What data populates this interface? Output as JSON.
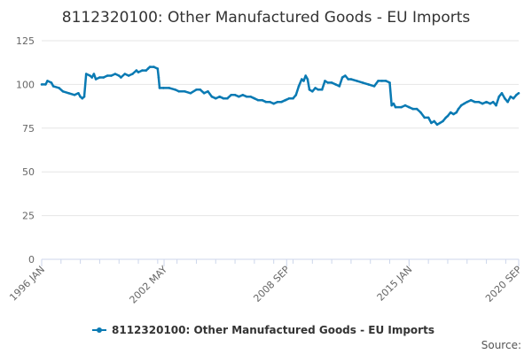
{
  "chart_data": {
    "type": "line",
    "title": "8112320100: Other Manufactured Goods - EU Imports",
    "xlabel": "",
    "ylabel": "",
    "ylim": [
      0,
      125
    ],
    "yticks": [
      0,
      25,
      50,
      75,
      100,
      125
    ],
    "x_range": [
      1996.0,
      2020.67
    ],
    "xticks": [
      {
        "label": "1996 JAN",
        "t": 1996.0
      },
      {
        "label": "2002 MAY",
        "t": 2002.33
      },
      {
        "label": "2008 SEP",
        "t": 2008.67
      },
      {
        "label": "2015 JAN",
        "t": 2015.0
      },
      {
        "label": "2020 SEP",
        "t": 2020.67
      }
    ],
    "grid": "horizontal",
    "legend_position": "bottom-center",
    "series": [
      {
        "name": "8112320100: Other Manufactured Goods - EU Imports",
        "color": "#0a7ab3",
        "points": [
          [
            1996.0,
            100
          ],
          [
            1996.2,
            100
          ],
          [
            1996.3,
            102
          ],
          [
            1996.5,
            101
          ],
          [
            1996.6,
            99
          ],
          [
            1996.9,
            98
          ],
          [
            1997.1,
            96
          ],
          [
            1997.4,
            95
          ],
          [
            1997.7,
            94
          ],
          [
            1997.9,
            95
          ],
          [
            1998.0,
            93
          ],
          [
            1998.1,
            92
          ],
          [
            1998.2,
            93
          ],
          [
            1998.3,
            106
          ],
          [
            1998.5,
            105
          ],
          [
            1998.6,
            104
          ],
          [
            1998.7,
            106
          ],
          [
            1998.8,
            103
          ],
          [
            1999.0,
            104
          ],
          [
            1999.2,
            104
          ],
          [
            1999.4,
            105
          ],
          [
            1999.6,
            105
          ],
          [
            1999.8,
            106
          ],
          [
            2000.0,
            105
          ],
          [
            2000.1,
            104
          ],
          [
            2000.3,
            106
          ],
          [
            2000.5,
            105
          ],
          [
            2000.7,
            106
          ],
          [
            2000.9,
            108
          ],
          [
            2001.0,
            107
          ],
          [
            2001.2,
            108
          ],
          [
            2001.4,
            108
          ],
          [
            2001.5,
            109
          ],
          [
            2001.6,
            110
          ],
          [
            2001.8,
            110
          ],
          [
            2002.0,
            109
          ],
          [
            2002.05,
            104
          ],
          [
            2002.1,
            98
          ],
          [
            2002.3,
            98
          ],
          [
            2002.6,
            98
          ],
          [
            2002.9,
            97
          ],
          [
            2003.1,
            96
          ],
          [
            2003.4,
            96
          ],
          [
            2003.7,
            95
          ],
          [
            2004.0,
            97
          ],
          [
            2004.2,
            97
          ],
          [
            2004.4,
            95
          ],
          [
            2004.6,
            96
          ],
          [
            2004.8,
            93
          ],
          [
            2005.0,
            92
          ],
          [
            2005.2,
            93
          ],
          [
            2005.4,
            92
          ],
          [
            2005.6,
            92
          ],
          [
            2005.8,
            94
          ],
          [
            2006.0,
            94
          ],
          [
            2006.2,
            93
          ],
          [
            2006.4,
            94
          ],
          [
            2006.6,
            93
          ],
          [
            2006.8,
            93
          ],
          [
            2007.0,
            92
          ],
          [
            2007.2,
            91
          ],
          [
            2007.4,
            91
          ],
          [
            2007.6,
            90
          ],
          [
            2007.8,
            90
          ],
          [
            2008.0,
            89
          ],
          [
            2008.2,
            90
          ],
          [
            2008.4,
            90
          ],
          [
            2008.6,
            91
          ],
          [
            2008.8,
            92
          ],
          [
            2009.0,
            92
          ],
          [
            2009.15,
            94
          ],
          [
            2009.3,
            99
          ],
          [
            2009.45,
            103
          ],
          [
            2009.55,
            102
          ],
          [
            2009.65,
            105
          ],
          [
            2009.75,
            103
          ],
          [
            2009.85,
            97
          ],
          [
            2010.0,
            96
          ],
          [
            2010.15,
            98
          ],
          [
            2010.3,
            97
          ],
          [
            2010.5,
            97
          ],
          [
            2010.65,
            102
          ],
          [
            2010.8,
            101
          ],
          [
            2011.0,
            101
          ],
          [
            2011.2,
            100
          ],
          [
            2011.4,
            99
          ],
          [
            2011.55,
            104
          ],
          [
            2011.7,
            105
          ],
          [
            2011.85,
            103
          ],
          [
            2012.0,
            103
          ],
          [
            2012.3,
            102
          ],
          [
            2012.6,
            101
          ],
          [
            2012.9,
            100
          ],
          [
            2013.2,
            99
          ],
          [
            2013.4,
            102
          ],
          [
            2013.6,
            102
          ],
          [
            2013.8,
            102
          ],
          [
            2014.0,
            101
          ],
          [
            2014.1,
            88
          ],
          [
            2014.2,
            89
          ],
          [
            2014.3,
            87
          ],
          [
            2014.6,
            87
          ],
          [
            2014.8,
            88
          ],
          [
            2015.0,
            87
          ],
          [
            2015.2,
            86
          ],
          [
            2015.4,
            86
          ],
          [
            2015.6,
            84
          ],
          [
            2015.8,
            81
          ],
          [
            2016.0,
            81
          ],
          [
            2016.15,
            78
          ],
          [
            2016.3,
            79
          ],
          [
            2016.45,
            77
          ],
          [
            2016.6,
            78
          ],
          [
            2016.75,
            79
          ],
          [
            2016.9,
            81
          ],
          [
            2017.0,
            82
          ],
          [
            2017.15,
            84
          ],
          [
            2017.3,
            83
          ],
          [
            2017.45,
            84
          ],
          [
            2017.55,
            86
          ],
          [
            2017.7,
            88
          ],
          [
            2017.85,
            89
          ],
          [
            2018.0,
            90
          ],
          [
            2018.2,
            91
          ],
          [
            2018.4,
            90
          ],
          [
            2018.6,
            90
          ],
          [
            2018.8,
            89
          ],
          [
            2019.0,
            90
          ],
          [
            2019.2,
            89
          ],
          [
            2019.35,
            90
          ],
          [
            2019.5,
            88
          ],
          [
            2019.65,
            93
          ],
          [
            2019.8,
            95
          ],
          [
            2019.95,
            92
          ],
          [
            2020.1,
            90
          ],
          [
            2020.25,
            93
          ],
          [
            2020.4,
            92
          ],
          [
            2020.55,
            94
          ],
          [
            2020.67,
            95
          ]
        ]
      }
    ],
    "credit": "Source:"
  }
}
